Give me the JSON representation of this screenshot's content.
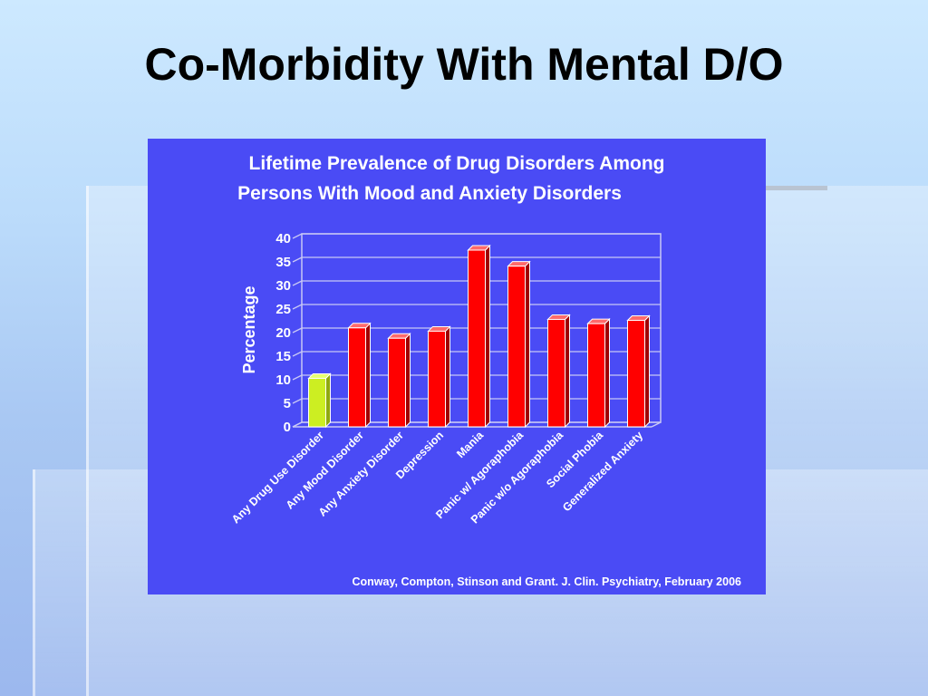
{
  "slide": {
    "title": "Co-Morbidity With Mental D/O"
  },
  "chart_data": {
    "type": "bar",
    "title_lines": [
      "Lifetime Prevalence of Drug Disorders Among",
      "Persons With Mood and Anxiety Disorders"
    ],
    "ylabel": "Percentage",
    "xlabel": "",
    "ylim": [
      0,
      40
    ],
    "yticks": [
      "0",
      "5",
      "10",
      "15",
      "20",
      "25",
      "30",
      "35",
      "40"
    ],
    "grid": true,
    "categories": [
      "Any Drug Use Disorder",
      "Any Mood Disorder",
      "Any Anxiety Disorder",
      "Depression",
      "Mania",
      "Panic w/ Agoraphobia",
      "Panic w/o Agoraphobia",
      "Social Phobia",
      "Generalized Anxiety"
    ],
    "values": [
      10.3,
      21.0,
      18.8,
      20.3,
      37.5,
      34.1,
      22.8,
      21.9,
      22.6
    ],
    "colors": {
      "highlight": "#ccee22",
      "bar": "#ff0000",
      "background": "#4a4bf5",
      "grid": "#c8c8f5"
    },
    "source": "Conway, Compton, Stinson and Grant. J. Clin. Psychiatry, February 2006"
  }
}
